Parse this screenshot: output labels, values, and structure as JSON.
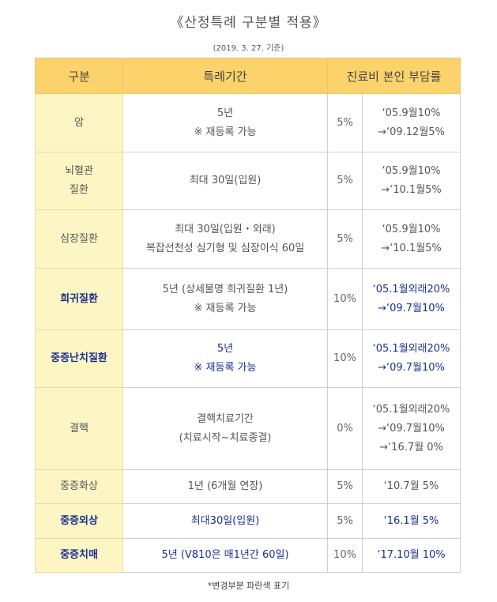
{
  "title": "《산정특례 구분별 적용》",
  "date": "(2019. 3. 27. 기준)",
  "headers": {
    "category": "구분",
    "period": "특례기간",
    "burden": "진료비 본인 부담률"
  },
  "rows": [
    {
      "category": [
        "암"
      ],
      "period": [
        "5년",
        "※ 재등록 가능"
      ],
      "pct": "5%",
      "history": [
        "‘05.9월10%",
        "→‘09.12월5%"
      ]
    },
    {
      "category": [
        "뇌혈관",
        "질환"
      ],
      "period": [
        "최대 30일(입원)"
      ],
      "pct": "5%",
      "history": [
        "‘05.9월10%",
        "→‘10.1월5%"
      ]
    },
    {
      "category": [
        "심장질환"
      ],
      "period": [
        "최대 30일(입원・외래)",
        "복잡선천성 심기형 및 심장이식 60일"
      ],
      "pct": "5%",
      "history": [
        "‘05.9월10%",
        "→‘10.1월5%"
      ]
    },
    {
      "category": [
        "희귀질환"
      ],
      "period": [
        "5년 (상세불명 희귀질환 1년)",
        "※ 재등록 가능"
      ],
      "pct": "10%",
      "history": [
        "‘05.1월외래20%",
        "→‘09.7월10%"
      ]
    },
    {
      "category": [
        "중증난치질환"
      ],
      "period": [
        "5년",
        "※ 재등록 가능"
      ],
      "pct": "10%",
      "history": [
        "‘05.1월외래20%",
        "→‘09.7월10%"
      ]
    },
    {
      "category": [
        "결핵"
      ],
      "period": [
        "결핵치료기간",
        "(치료시작~치료종결)"
      ],
      "pct": "0%",
      "history": [
        "‘05.1월외래20%",
        "→‘09.7월10%",
        "→‘16.7월 0%"
      ]
    },
    {
      "category": [
        "중증화상"
      ],
      "period": [
        "1년 (6개월 연장)"
      ],
      "pct": "5%",
      "history": [
        "‘10.7월 5%"
      ]
    },
    {
      "category": [
        "중증외상"
      ],
      "period": [
        "최대30일(입원)"
      ],
      "pct": "5%",
      "history": [
        "‘16.1월 5%"
      ]
    },
    {
      "category": [
        "중증치매"
      ],
      "period": [
        "5년 (V810은 매1년간 60일)"
      ],
      "pct": "10%",
      "history": [
        "‘17.10월 10%"
      ]
    }
  ],
  "note": "*변경부분 파란색 표기",
  "colors": {
    "header_bg": "#fcd26a",
    "category_bg": "#fdf6c4",
    "changed_text": "#1a2f8f"
  }
}
